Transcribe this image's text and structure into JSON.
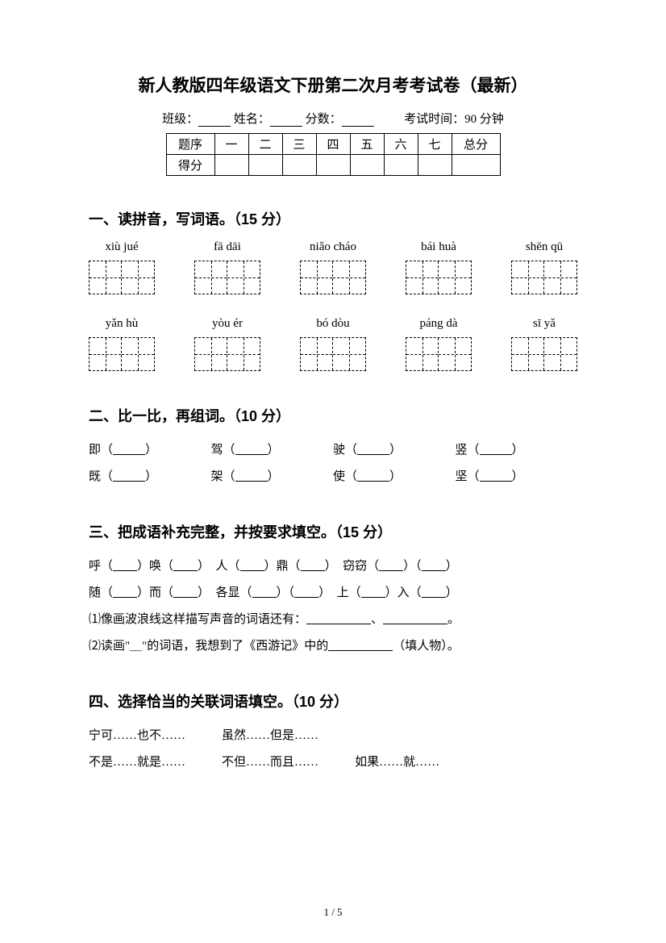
{
  "title": "新人教版四年级语文下册第二次月考考试卷（最新）",
  "meta": {
    "class_label": "班级：",
    "name_label": "姓名：",
    "score_label": "分数：",
    "exam_time": "考试时间：90 分钟"
  },
  "score_table": {
    "row1": [
      "题序",
      "一",
      "二",
      "三",
      "四",
      "五",
      "六",
      "七",
      "总分"
    ],
    "row2_label": "得分"
  },
  "section1": {
    "heading": "一、读拼音，写词语。（15 分）",
    "row1": [
      "xiù jué",
      "fā dāi",
      "niǎo cháo",
      "bái huà",
      "shēn qū"
    ],
    "row2": [
      "yǎn hù",
      "yòu ér",
      "bó dòu",
      "páng dà",
      "sī yǎ"
    ]
  },
  "section2": {
    "heading": "二、比一比，再组词。（10 分）",
    "r1": [
      "即（",
      "驾（",
      "驶（",
      "竖（"
    ],
    "r2": [
      "既（",
      "架（",
      "使（",
      "坚（"
    ]
  },
  "section3": {
    "heading": "三、把成语补充完整，并按要求填空。（15 分）",
    "l1": {
      "a": "呼（",
      "b": "）唤（",
      "c": "）　人（",
      "d": "）鼎（",
      "e": "）　窃窃（",
      "f": "）（",
      "g": "）"
    },
    "l2": {
      "a": "随（",
      "b": "）而（",
      "c": "）　各显（",
      "d": "）（",
      "e": "）　上（",
      "f": "）入（",
      "g": "）"
    },
    "l3a": "⑴像画波浪线这样描写声音的词语还有：",
    "l3b": "、",
    "l3c": "。",
    "l4a": "⑵读画\"＿\"的词语，我想到了《西游记》中的",
    "l4b": "（填人物）。"
  },
  "section4": {
    "heading": "四、选择恰当的关联词语填空。（10 分）",
    "r1": [
      "宁可……也不……",
      "虽然……但是……"
    ],
    "r2": [
      "不是……就是……",
      "不但……而且……",
      "如果……就……"
    ]
  },
  "page_num": "1 / 5"
}
